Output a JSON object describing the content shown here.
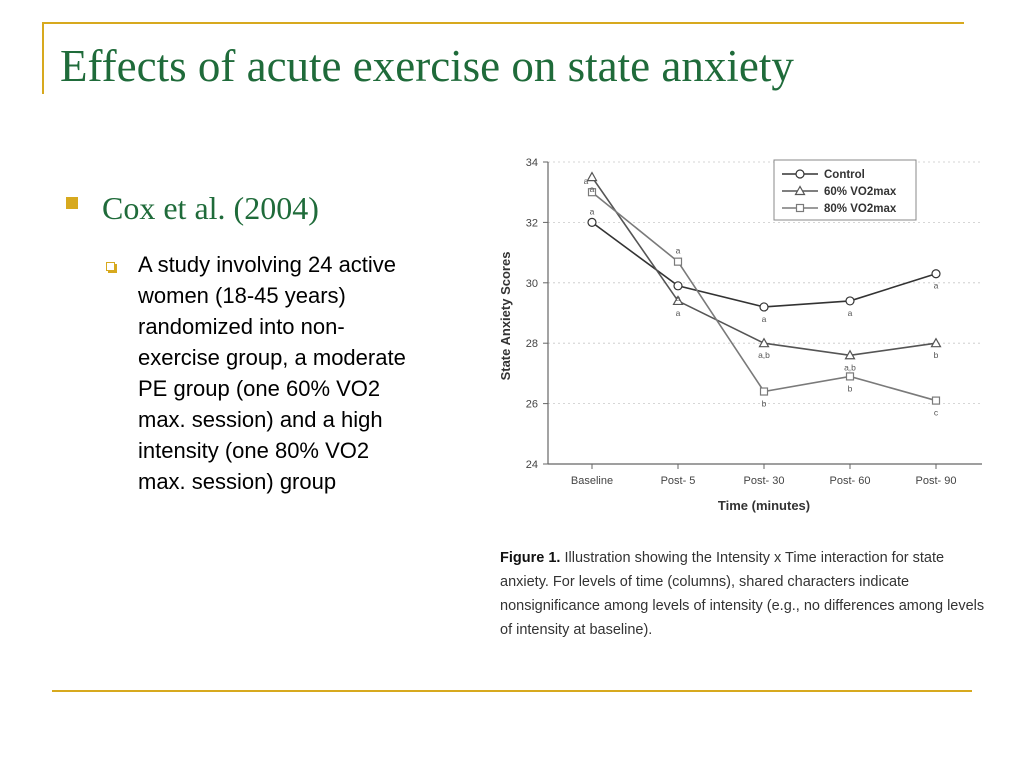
{
  "slide": {
    "title": "Effects of acute exercise on state anxiety",
    "bullet": "Cox et al. (2004)",
    "sub_bullet": "A study involving 24 active\nwomen (18-45 years)\nrandomized into non-\nexercise group, a moderate\nPE group (one 60% VO2\nmax. session) and a high\nintensity (one 80% VO2\nmax. session) group"
  },
  "figure": {
    "caption_label": "Figure 1.",
    "caption_text": " Illustration showing the Intensity x Time interaction for state anxiety. For levels of time (columns), shared characters indicate nonsignificance among levels of intensity (e.g., no differences among levels of intensity at baseline)."
  },
  "chart_data": {
    "type": "line",
    "xlabel": "Time (minutes)",
    "ylabel": "State Anxiety Scores",
    "categories": [
      "Baseline",
      "Post- 5",
      "Post- 30",
      "Post- 60",
      "Post- 90"
    ],
    "ylim": [
      24,
      34
    ],
    "yticks": [
      24,
      26,
      28,
      30,
      32,
      34
    ],
    "legend_position": "top-right",
    "series": [
      {
        "name": "Control",
        "marker": "circle",
        "values": [
          32.0,
          29.9,
          29.2,
          29.4,
          30.3
        ],
        "letters": [
          "a",
          "a",
          "a",
          "a",
          "a"
        ]
      },
      {
        "name": "60% VO2max",
        "marker": "triangle",
        "values": [
          33.5,
          29.4,
          28.0,
          27.6,
          28.0
        ],
        "letters": [
          "a",
          "a",
          "a,b",
          "a,b",
          "b"
        ]
      },
      {
        "name": "80% VO2max",
        "marker": "square",
        "values": [
          33.0,
          30.7,
          26.4,
          26.9,
          26.1
        ],
        "letters": [
          "a",
          "a",
          "b",
          "b",
          "c"
        ]
      }
    ],
    "colors": {
      "Control": "#333333",
      "60% VO2max": "#555555",
      "80% VO2max": "#7a7a7a"
    }
  }
}
